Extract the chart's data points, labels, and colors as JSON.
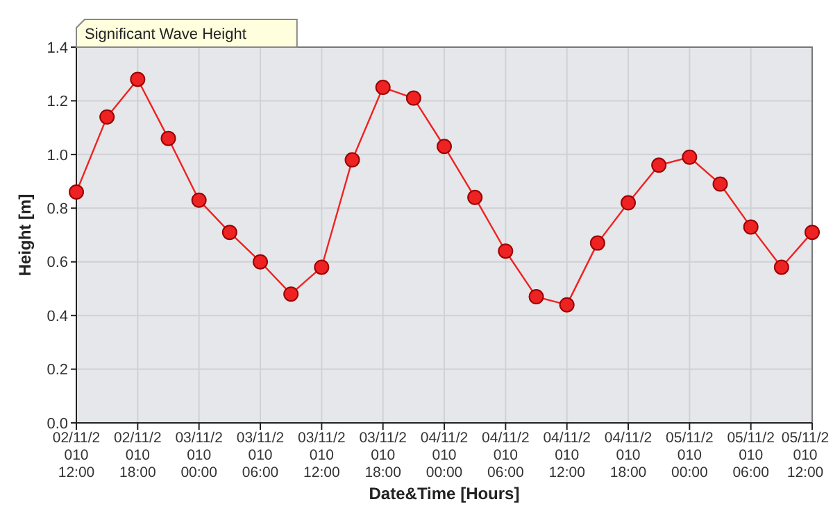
{
  "chart_data": {
    "type": "line",
    "title": "Significant Wave Height",
    "xlabel": "Date&Time [Hours]",
    "ylabel": "Height [m]",
    "categories": [
      "02/11/2010 12:00",
      null,
      "02/11/2010 18:00",
      null,
      "03/11/2010 00:00",
      null,
      "03/11/2010 06:00",
      null,
      "03/11/2010 12:00",
      null,
      "03/11/2010 18:00",
      null,
      "04/11/2010 00:00",
      null,
      "04/11/2010 06:00",
      null,
      "04/11/2010 12:00",
      null,
      "04/11/2010 18:00",
      null,
      "05/11/2010 00:00",
      null,
      "05/11/2010 06:00",
      null,
      "05/11/2010 12:00"
    ],
    "series": [
      {
        "color": "#ee2222",
        "values": [
          0.86,
          1.14,
          1.28,
          1.06,
          0.83,
          0.71,
          0.6,
          0.48,
          0.58,
          0.98,
          1.25,
          1.21,
          1.03,
          0.84,
          0.64,
          0.47,
          0.44,
          0.67,
          0.82,
          0.96,
          0.99,
          0.89,
          0.73,
          0.58,
          0.71
        ]
      }
    ],
    "ylim": [
      0,
      1.4
    ],
    "yticks": [
      {
        "value": 0,
        "label": "0.0"
      },
      0.2,
      0.4,
      0.6,
      0.8,
      {
        "value": 1,
        "label": "1.0"
      },
      1.2,
      1.4
    ],
    "grid": true,
    "marker": "circle"
  }
}
